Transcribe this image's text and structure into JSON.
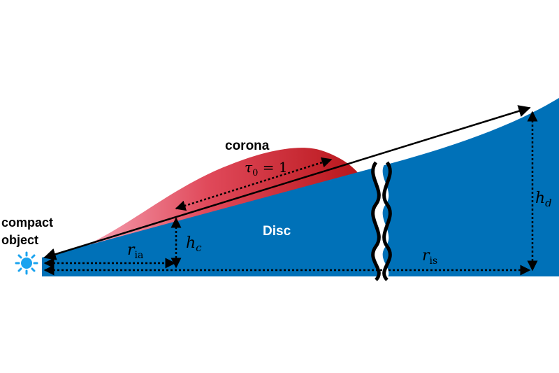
{
  "labels": {
    "corona": "corona",
    "tau_symbol": "τ",
    "tau_subscript": "0",
    "tau_value": " = 1",
    "compact_object_line1": "compact",
    "compact_object_line2": "object",
    "disc": "Disc",
    "h_d_symbol": "h",
    "h_d_subscript": "d",
    "h_c_symbol": "h",
    "h_c_subscript": "c",
    "r_ia_symbol": "r",
    "r_ia_subscript": "ia",
    "r_is_symbol": "r",
    "r_is_subscript": "is"
  },
  "colors": {
    "disc": "#0071b8",
    "corona_light": "#f47f96",
    "corona_dark": "#b8161b",
    "star": "#1aa3ef",
    "arrows": "#000000",
    "disc_label": "#ffffff"
  },
  "icons": {
    "compact_object": "star-burst-icon",
    "break": "wavy-break-icon"
  }
}
